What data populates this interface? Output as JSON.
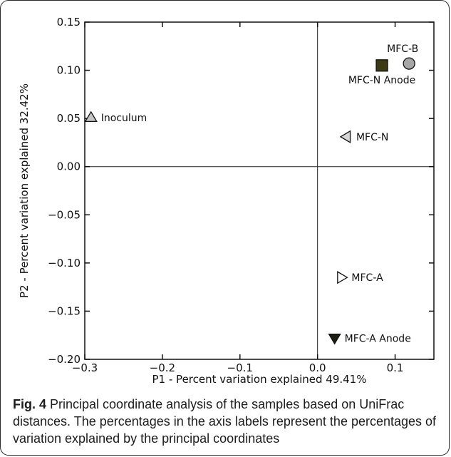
{
  "chart_data": {
    "type": "scatter",
    "xlabel": "P1 - Percent variation explained 49.41%",
    "ylabel": "P2 - Percent variation explained 32.42%",
    "xlim": [
      -0.3,
      0.15
    ],
    "ylim": [
      -0.2,
      0.15
    ],
    "xticks": [
      -0.3,
      -0.2,
      -0.1,
      0.0,
      0.1
    ],
    "xtick_labels": [
      "−0.3",
      "−0.2",
      "−0.1",
      "0.0",
      "0.1"
    ],
    "yticks": [
      0.15,
      0.1,
      0.05,
      0.0,
      -0.05,
      -0.1,
      -0.15,
      -0.2
    ],
    "ytick_labels": [
      "0.15",
      "0.10",
      "0.05",
      "0.00",
      "−0.05",
      "−0.10",
      "−0.15",
      "−0.20"
    ],
    "zero_lines": true,
    "grid": false,
    "points": [
      {
        "label": "MFC-B",
        "x": 0.118,
        "y": 0.107,
        "marker": "circle",
        "color": "#a6a6a6",
        "label_pos": "above"
      },
      {
        "label": "MFC-N Anode",
        "x": 0.083,
        "y": 0.105,
        "marker": "square",
        "color": "#3c3a12",
        "label_pos": "below"
      },
      {
        "label": "Inoculum",
        "x": -0.292,
        "y": 0.051,
        "marker": "triangle-up",
        "color": "#c4c4c4",
        "label_pos": "right"
      },
      {
        "label": "MFC-N",
        "x": 0.037,
        "y": 0.031,
        "marker": "triangle-left",
        "color": "#d6d6d6",
        "label_pos": "right"
      },
      {
        "label": "MFC-A",
        "x": 0.031,
        "y": -0.115,
        "marker": "triangle-right",
        "color": "#ffffff",
        "label_pos": "right"
      },
      {
        "label": "MFC-A Anode",
        "x": 0.022,
        "y": -0.178,
        "marker": "triangle-down",
        "color": "#1e1e14",
        "label_pos": "right"
      }
    ]
  },
  "caption": {
    "fig_label": "Fig. 4",
    "text": " Principal coordinate analysis of the samples based on UniFrac distances. The percentages in the axis labels represent the percentages of variation explained by the principal coordinates"
  }
}
